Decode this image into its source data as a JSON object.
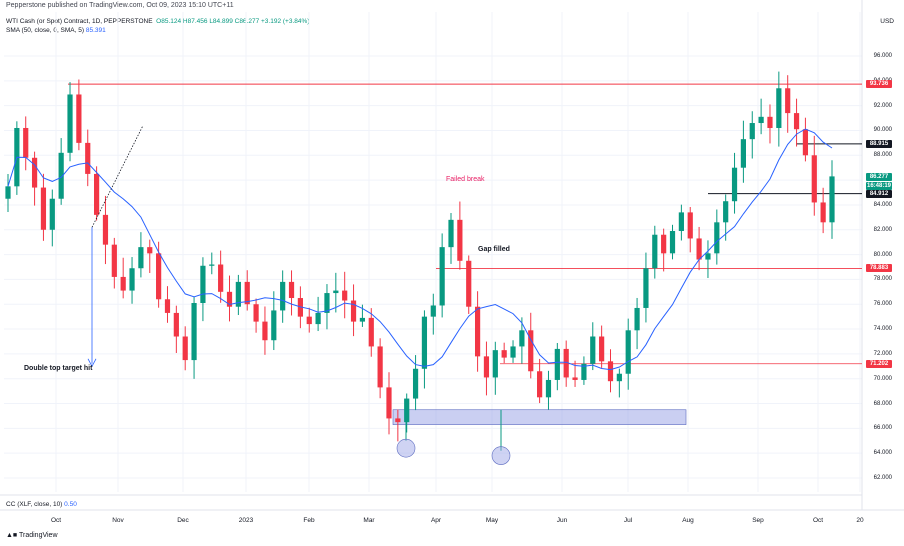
{
  "header": {
    "credit": "Pepperstone published on TradingView.com, Oct 09, 2023 15:10 UTC+11"
  },
  "legend": {
    "symbol": "WTI Cash (or Spot) Contract, 1D, PEPPERSTONE",
    "o": "O85.124",
    "h": "H87.456",
    "l": "L84.899",
    "c": "C86.277",
    "change": "+3.192 (+3.84%)",
    "sma_label": "SMA (50, close, 0, SMA, 5)",
    "sma_value": "85.391"
  },
  "currency": "USD",
  "price_ticks": [
    "96.000",
    "94.000",
    "92.000",
    "90.000",
    "88.000",
    "86.000",
    "84.000",
    "82.000",
    "80.000",
    "78.000",
    "76.000",
    "74.000",
    "72.000",
    "70.000",
    "68.000",
    "66.000",
    "64.000",
    "62.000"
  ],
  "tags": [
    {
      "text": "93.736",
      "bg": "#f23645",
      "fg": "#ffffff",
      "price": 93.736
    },
    {
      "text": "88.915",
      "bg": "#131722",
      "fg": "#ffffff",
      "price": 88.915
    },
    {
      "text": "86.277",
      "bg": "#089981",
      "fg": "#ffffff",
      "price": 86.277
    },
    {
      "text": "16:48:19",
      "bg": "#089981",
      "fg": "#ffffff",
      "price": 85.55
    },
    {
      "text": "84.912",
      "bg": "#131722",
      "fg": "#ffffff",
      "price": 84.912
    },
    {
      "text": "78.883",
      "bg": "#f23645",
      "fg": "#ffffff",
      "price": 78.883
    },
    {
      "text": "71.202",
      "bg": "#f23645",
      "fg": "#ffffff",
      "price": 71.202
    }
  ],
  "time_ticks": [
    "Oct",
    "Nov",
    "Dec",
    "2023",
    "Feb",
    "Mar",
    "Apr",
    "May",
    "Jun",
    "Jul",
    "Aug",
    "Sep",
    "Oct",
    "20"
  ],
  "annotations": {
    "failed_break": "Failed break",
    "gap_filled": "Gap filled",
    "double_top": "Double top target hit"
  },
  "indicator": {
    "cc_label": "CC (XLF, close, 10)",
    "cc_value": "0.50"
  },
  "footer": {
    "brand": "TradingView"
  },
  "colors": {
    "up": "#089981",
    "down": "#f23645",
    "sma": "#2962ff",
    "grid": "#f0f3fa",
    "zone": "#9fa8e8"
  },
  "chart_data": {
    "type": "candlestick",
    "series": [
      {
        "name": "WTI Cash (or Spot) Contract, 1D, PEPPERSTONE",
        "close": [
          85.5,
          90.2,
          87.8,
          85.4,
          82.0,
          84.5,
          88.2,
          92.9,
          89.0,
          86.5,
          83.2,
          80.8,
          78.2,
          77.1,
          78.9,
          80.6,
          80.1,
          76.4,
          75.3,
          73.4,
          71.5,
          76.1,
          79.1,
          79.2,
          77.0,
          75.8,
          77.8,
          76.0,
          74.6,
          73.1,
          75.5,
          77.8,
          76.5,
          75.0,
          74.4,
          75.3,
          76.9,
          77.1,
          76.3,
          74.6,
          74.9,
          72.6,
          69.3,
          66.8,
          66.5,
          68.4,
          70.8,
          75.0,
          75.9,
          80.6,
          82.8,
          79.5,
          75.8,
          71.8,
          70.1,
          72.3,
          71.7,
          72.6,
          73.9,
          70.6,
          68.5,
          69.9,
          72.4,
          70.1,
          69.9,
          71.2,
          73.4,
          71.4,
          69.8,
          70.4,
          73.9,
          75.7,
          78.9,
          81.6,
          80.1,
          81.9,
          83.4,
          81.3,
          79.6,
          80.1,
          82.6,
          84.3,
          87.0,
          89.3,
          90.6,
          91.1,
          90.2,
          93.4,
          91.4,
          90.1,
          88.0,
          84.2,
          82.6,
          86.3
        ]
      }
    ],
    "sma": {
      "name": "SMA (50, close, 0, SMA, 5)",
      "last": 85.391
    },
    "levels": [
      93.736,
      88.915,
      84.912,
      78.883,
      71.202
    ],
    "y_range": [
      61,
      98
    ],
    "x_labels": [
      "Oct",
      "Nov",
      "Dec",
      "2023",
      "Feb",
      "Mar",
      "Apr",
      "May",
      "Jun",
      "Jul",
      "Aug",
      "Sep",
      "Oct",
      "20"
    ]
  }
}
